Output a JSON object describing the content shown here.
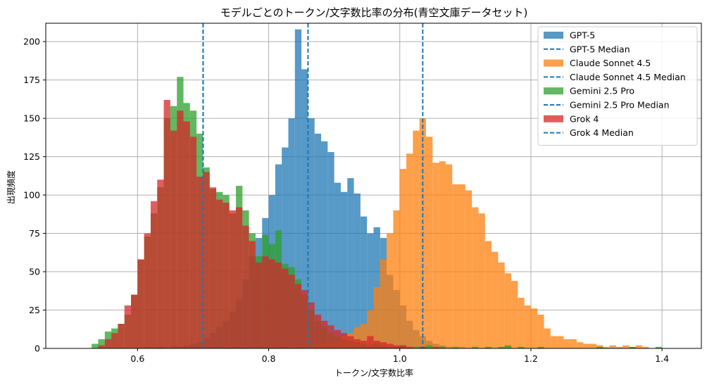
{
  "chart_data": {
    "type": "histogram",
    "title": "モデルごとのトークン/文字数比率の分布(青空文庫データセット)",
    "xlabel": "トークン/文字数比率",
    "ylabel": "出現頻度",
    "xlim": [
      0.46,
      1.46
    ],
    "ylim": [
      0,
      212
    ],
    "x_ticks": [
      0.6,
      0.8,
      1.0,
      1.2,
      1.4
    ],
    "y_ticks": [
      0,
      25,
      50,
      75,
      100,
      125,
      150,
      175,
      200
    ],
    "grid": true,
    "legend_position": "top-right",
    "bin_width": 0.01,
    "series": [
      {
        "name": "GPT-5",
        "color": "#1f77b4",
        "opacity": 0.75,
        "median": 0.86,
        "bins": [
          [
            0.61,
            1
          ],
          [
            0.63,
            1
          ],
          [
            0.65,
            2
          ],
          [
            0.66,
            1
          ],
          [
            0.67,
            2
          ],
          [
            0.68,
            3
          ],
          [
            0.69,
            4
          ],
          [
            0.7,
            7
          ],
          [
            0.71,
            10
          ],
          [
            0.72,
            14
          ],
          [
            0.73,
            18
          ],
          [
            0.74,
            24
          ],
          [
            0.75,
            32
          ],
          [
            0.76,
            45
          ],
          [
            0.77,
            60
          ],
          [
            0.78,
            72
          ],
          [
            0.79,
            85
          ],
          [
            0.8,
            100
          ],
          [
            0.81,
            120
          ],
          [
            0.82,
            131
          ],
          [
            0.83,
            150
          ],
          [
            0.84,
            208
          ],
          [
            0.85,
            182
          ],
          [
            0.86,
            150
          ],
          [
            0.87,
            140
          ],
          [
            0.88,
            135
          ],
          [
            0.89,
            128
          ],
          [
            0.9,
            108
          ],
          [
            0.91,
            102
          ],
          [
            0.92,
            111
          ],
          [
            0.93,
            101
          ],
          [
            0.94,
            86
          ],
          [
            0.95,
            75
          ],
          [
            0.96,
            79
          ],
          [
            0.97,
            72
          ],
          [
            0.98,
            48
          ],
          [
            0.99,
            38
          ],
          [
            1.0,
            28
          ],
          [
            1.01,
            18
          ],
          [
            1.02,
            12
          ],
          [
            1.03,
            8
          ],
          [
            1.04,
            5
          ],
          [
            1.05,
            3
          ],
          [
            1.06,
            2
          ],
          [
            1.07,
            1
          ],
          [
            1.09,
            1
          ]
        ]
      },
      {
        "name": "Claude Sonnet 4.5",
        "color": "#ff7f0e",
        "opacity": 0.75,
        "median": 1.035,
        "bins": [
          [
            0.8,
            1
          ],
          [
            0.83,
            1
          ],
          [
            0.85,
            2
          ],
          [
            0.87,
            2
          ],
          [
            0.88,
            3
          ],
          [
            0.89,
            4
          ],
          [
            0.9,
            5
          ],
          [
            0.91,
            8
          ],
          [
            0.92,
            10
          ],
          [
            0.93,
            14
          ],
          [
            0.94,
            16
          ],
          [
            0.95,
            25
          ],
          [
            0.96,
            40
          ],
          [
            0.97,
            58
          ],
          [
            0.98,
            75
          ],
          [
            0.99,
            90
          ],
          [
            1.0,
            117
          ],
          [
            1.01,
            127
          ],
          [
            1.02,
            142
          ],
          [
            1.03,
            150
          ],
          [
            1.04,
            138
          ],
          [
            1.05,
            121
          ],
          [
            1.06,
            122
          ],
          [
            1.07,
            120
          ],
          [
            1.08,
            107
          ],
          [
            1.09,
            107
          ],
          [
            1.1,
            103
          ],
          [
            1.11,
            92
          ],
          [
            1.12,
            88
          ],
          [
            1.13,
            70
          ],
          [
            1.14,
            63
          ],
          [
            1.15,
            56
          ],
          [
            1.16,
            49
          ],
          [
            1.17,
            44
          ],
          [
            1.18,
            33
          ],
          [
            1.19,
            28
          ],
          [
            1.2,
            26
          ],
          [
            1.21,
            22
          ],
          [
            1.22,
            13
          ],
          [
            1.23,
            8
          ],
          [
            1.24,
            8
          ],
          [
            1.25,
            6
          ],
          [
            1.26,
            6
          ],
          [
            1.27,
            4
          ],
          [
            1.28,
            3
          ],
          [
            1.29,
            3
          ],
          [
            1.3,
            2
          ],
          [
            1.31,
            1
          ],
          [
            1.32,
            2
          ],
          [
            1.33,
            1
          ],
          [
            1.34,
            2
          ],
          [
            1.35,
            1
          ],
          [
            1.36,
            2
          ],
          [
            1.37,
            1
          ]
        ]
      },
      {
        "name": "Gemini 2.5 Pro",
        "color": "#2ca02c",
        "opacity": 0.75,
        "median": 0.7,
        "bins": [
          [
            0.53,
            3
          ],
          [
            0.54,
            6
          ],
          [
            0.55,
            11
          ],
          [
            0.56,
            13
          ],
          [
            0.57,
            16
          ],
          [
            0.58,
            22
          ],
          [
            0.59,
            35
          ],
          [
            0.6,
            58
          ],
          [
            0.61,
            73
          ],
          [
            0.62,
            88
          ],
          [
            0.63,
            105
          ],
          [
            0.64,
            150
          ],
          [
            0.65,
            158
          ],
          [
            0.66,
            177
          ],
          [
            0.67,
            160
          ],
          [
            0.68,
            155
          ],
          [
            0.69,
            140
          ],
          [
            0.7,
            118
          ],
          [
            0.71,
            104
          ],
          [
            0.72,
            102
          ],
          [
            0.73,
            100
          ],
          [
            0.74,
            88
          ],
          [
            0.75,
            106
          ],
          [
            0.76,
            90
          ],
          [
            0.77,
            75
          ],
          [
            0.78,
            60
          ],
          [
            0.79,
            74
          ],
          [
            0.8,
            68
          ],
          [
            0.81,
            77
          ],
          [
            0.82,
            55
          ],
          [
            0.83,
            53
          ],
          [
            0.84,
            45
          ],
          [
            0.85,
            35
          ],
          [
            0.86,
            25
          ],
          [
            0.87,
            18
          ],
          [
            0.88,
            14
          ],
          [
            0.89,
            10
          ],
          [
            0.9,
            8
          ],
          [
            0.91,
            6
          ],
          [
            0.92,
            5
          ],
          [
            0.93,
            4
          ],
          [
            0.94,
            3
          ],
          [
            0.95,
            2
          ],
          [
            0.96,
            3
          ],
          [
            0.97,
            2
          ],
          [
            0.98,
            1
          ],
          [
            0.99,
            1
          ],
          [
            1.0,
            2
          ],
          [
            1.02,
            1
          ],
          [
            1.03,
            1
          ],
          [
            1.04,
            2
          ],
          [
            1.06,
            1
          ],
          [
            1.08,
            1
          ],
          [
            1.11,
            1
          ],
          [
            1.13,
            1
          ],
          [
            1.15,
            1
          ],
          [
            1.16,
            2
          ],
          [
            1.18,
            1
          ],
          [
            1.21,
            1
          ],
          [
            1.3,
            1
          ],
          [
            1.35,
            1
          ],
          [
            1.39,
            1
          ]
        ]
      },
      {
        "name": "Grok 4",
        "color": "#d62728",
        "opacity": 0.75,
        "median": 0.7,
        "bins": [
          [
            0.54,
            2
          ],
          [
            0.55,
            6
          ],
          [
            0.56,
            10
          ],
          [
            0.57,
            16
          ],
          [
            0.58,
            28
          ],
          [
            0.59,
            35
          ],
          [
            0.6,
            58
          ],
          [
            0.61,
            75
          ],
          [
            0.62,
            96
          ],
          [
            0.63,
            110
          ],
          [
            0.64,
            162
          ],
          [
            0.65,
            142
          ],
          [
            0.66,
            155
          ],
          [
            0.67,
            148
          ],
          [
            0.68,
            138
          ],
          [
            0.69,
            112
          ],
          [
            0.7,
            115
          ],
          [
            0.71,
            105
          ],
          [
            0.72,
            97
          ],
          [
            0.73,
            95
          ],
          [
            0.74,
            90
          ],
          [
            0.75,
            92
          ],
          [
            0.76,
            80
          ],
          [
            0.77,
            70
          ],
          [
            0.78,
            56
          ],
          [
            0.79,
            60
          ],
          [
            0.8,
            58
          ],
          [
            0.81,
            56
          ],
          [
            0.82,
            52
          ],
          [
            0.83,
            48
          ],
          [
            0.84,
            42
          ],
          [
            0.85,
            38
          ],
          [
            0.86,
            30
          ],
          [
            0.87,
            22
          ],
          [
            0.88,
            18
          ],
          [
            0.89,
            15
          ],
          [
            0.9,
            12
          ],
          [
            0.91,
            10
          ],
          [
            0.92,
            8
          ],
          [
            0.93,
            6
          ],
          [
            0.94,
            5
          ],
          [
            0.95,
            8
          ],
          [
            0.96,
            5
          ],
          [
            0.97,
            4
          ],
          [
            0.98,
            3
          ],
          [
            0.99,
            2
          ],
          [
            1.0,
            2
          ],
          [
            1.01,
            1
          ],
          [
            1.03,
            1
          ],
          [
            1.05,
            1
          ]
        ]
      }
    ],
    "legend": [
      {
        "label": "GPT-5",
        "kind": "patch",
        "color": "#1f77b4"
      },
      {
        "label": "GPT-5 Median",
        "kind": "dashed-line",
        "color": "#1f77b4"
      },
      {
        "label": "Claude Sonnet 4.5",
        "kind": "patch",
        "color": "#ff7f0e"
      },
      {
        "label": "Claude Sonnet 4.5 Median",
        "kind": "dashed-line",
        "color": "#1f77b4"
      },
      {
        "label": "Gemini 2.5 Pro",
        "kind": "patch",
        "color": "#2ca02c"
      },
      {
        "label": "Gemini 2.5 Pro Median",
        "kind": "dashed-line",
        "color": "#1f77b4"
      },
      {
        "label": "Grok 4",
        "kind": "patch",
        "color": "#d62728"
      },
      {
        "label": "Grok 4 Median",
        "kind": "dashed-line",
        "color": "#1f77b4"
      }
    ]
  }
}
